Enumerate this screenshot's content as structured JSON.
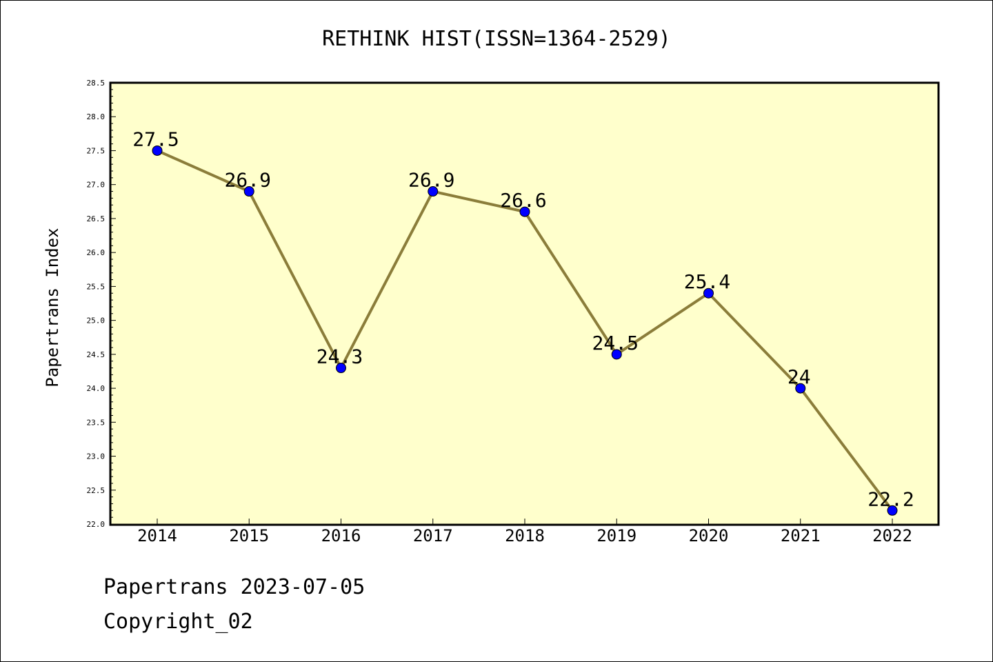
{
  "chart_data": {
    "type": "line",
    "title": "RETHINK HIST(ISSN=1364-2529)",
    "xlabel": "",
    "ylabel": "Papertrans Index",
    "categories": [
      "2014",
      "2015",
      "2016",
      "2017",
      "2018",
      "2019",
      "2020",
      "2021",
      "2022"
    ],
    "series": [
      {
        "values": [
          27.5,
          26.9,
          24.3,
          26.9,
          26.6,
          24.5,
          25.4,
          24,
          22.2
        ]
      }
    ],
    "data_labels": [
      "27.5",
      "26.9",
      "24.3",
      "26.9",
      "26.6",
      "24.5",
      "25.4",
      "24",
      "22.2"
    ],
    "ylim": [
      22.0,
      28.5
    ],
    "yticks": [
      "22.0",
      "22.5",
      "23.0",
      "23.5",
      "24.0",
      "24.5",
      "25.0",
      "25.5",
      "26.0",
      "26.5",
      "27.0",
      "27.5",
      "28.0",
      "28.5"
    ],
    "grid": false,
    "legend": "none",
    "colors": {
      "plot_background": "#ffffcc",
      "line": "#8b7d3a",
      "marker": "#0000ff"
    }
  },
  "footer": {
    "line1": "Papertrans 2023-07-05",
    "line2": "Copyright_02"
  }
}
